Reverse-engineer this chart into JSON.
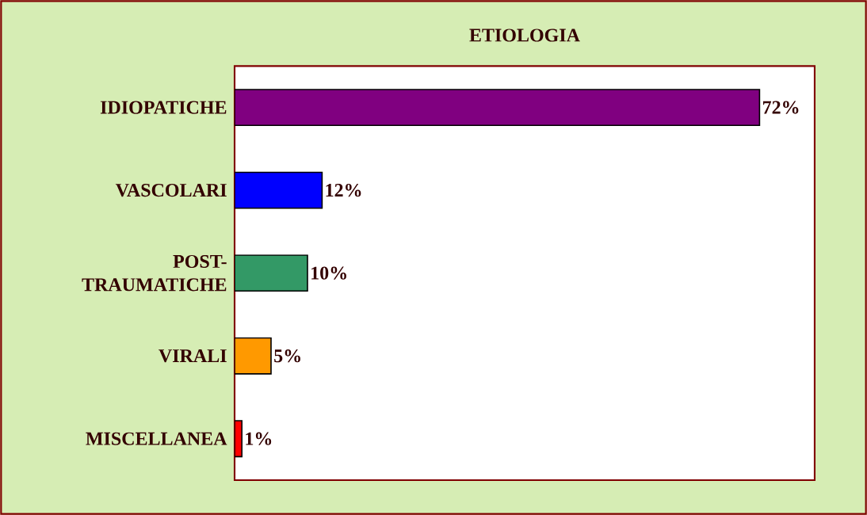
{
  "chart_data": {
    "type": "bar",
    "orientation": "horizontal",
    "title": "ETIOLOGIA",
    "categories": [
      "IDIOPATICHE",
      "VASCOLARI",
      "POST-TRAUMATICHE",
      "VIRALI",
      "MISCELLANEA"
    ],
    "values": [
      72,
      12,
      10,
      5,
      1
    ],
    "colors": [
      "#800080",
      "#0000ff",
      "#339966",
      "#ff9900",
      "#ff0000"
    ],
    "value_labels": [
      "72%",
      "12%",
      "10%",
      "5%",
      "1%"
    ]
  }
}
